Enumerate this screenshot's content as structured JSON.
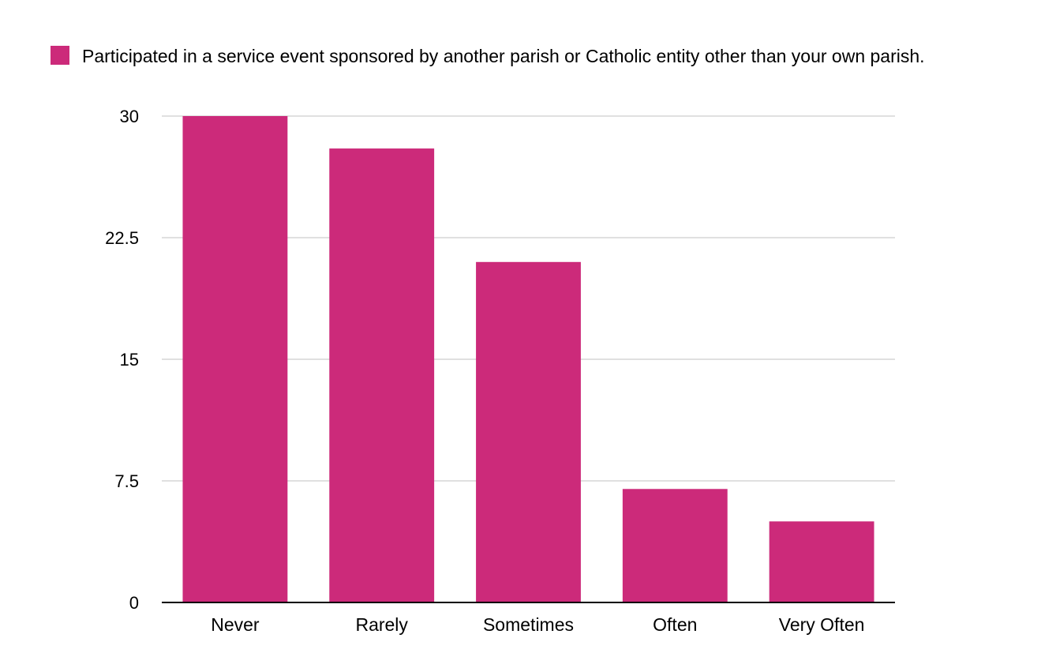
{
  "chart_data": {
    "type": "bar",
    "categories": [
      "Never",
      "Rarely",
      "Sometimes",
      "Often",
      "Very Often"
    ],
    "series": [
      {
        "name": "Participated in a service event sponsored by another parish or Catholic entity other than your own parish.",
        "values": [
          30,
          28,
          21,
          7,
          5
        ]
      }
    ],
    "title": "",
    "xlabel": "",
    "ylabel": "",
    "ylim": [
      0,
      30
    ],
    "yticks": [
      "0",
      "7.5",
      "15",
      "22.5",
      "30"
    ],
    "grid": true,
    "legend_position": "top-left",
    "colors": {
      "bar": "#cc2a7a",
      "grid": "#c2c2c2",
      "axis": "#000000"
    }
  }
}
